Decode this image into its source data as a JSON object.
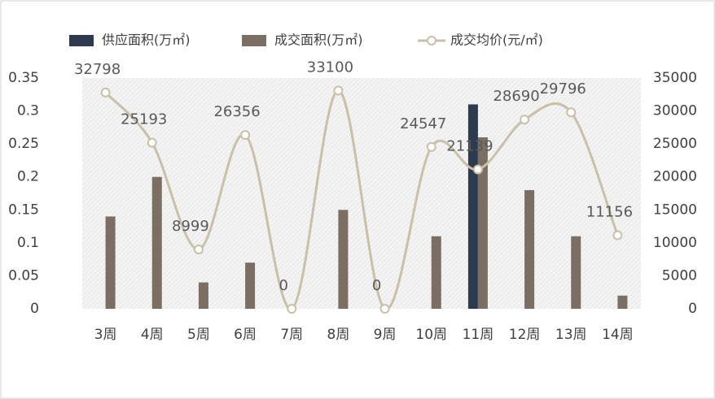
{
  "chart_data": {
    "type": "bar-line",
    "categories": [
      "3周",
      "4周",
      "5周",
      "6周",
      "7周",
      "8周",
      "9周",
      "10周",
      "11周",
      "12周",
      "13周",
      "14周"
    ],
    "series": [
      {
        "name": "供应面积(万㎡)",
        "type": "bar",
        "color": "#2e3a4f",
        "values": [
          0,
          0,
          0,
          0,
          0,
          0,
          0,
          0,
          0.31,
          0,
          0,
          0
        ]
      },
      {
        "name": "成交面积(万㎡)",
        "type": "bar",
        "color": "#7a6f62",
        "values": [
          0.14,
          0.2,
          0.04,
          0.07,
          0,
          0.15,
          0,
          0.11,
          0.26,
          0.18,
          0.11,
          0.02
        ]
      },
      {
        "name": "成交均价(元/㎡)",
        "type": "line",
        "axis": "y2",
        "color": "#c9c0aa",
        "values": [
          32798,
          25193,
          8999,
          26356,
          0,
          33100,
          0,
          24547,
          21139,
          28690,
          29796,
          11156
        ]
      }
    ],
    "ylim": [
      0,
      0.35
    ],
    "yticks": [
      0,
      0.05,
      0.1,
      0.15,
      0.2,
      0.25,
      0.3,
      0.35
    ],
    "y2lim": [
      0,
      35000
    ],
    "y2ticks": [
      0,
      5000,
      10000,
      15000,
      20000,
      25000,
      30000,
      35000
    ],
    "grid": false,
    "legend": "top"
  }
}
